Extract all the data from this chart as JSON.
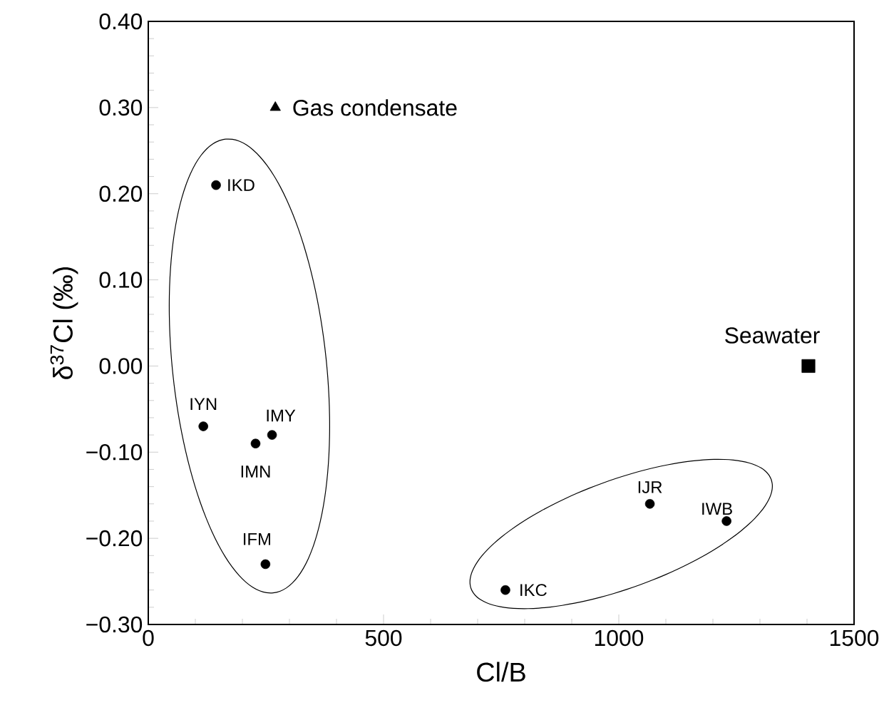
{
  "chart_data": {
    "type": "scatter",
    "xlabel": "Cl/B",
    "ylabel": "δ$^{37}$Cl (‰)",
    "xlim": [
      0,
      1500
    ],
    "xticks": [
      0,
      500,
      1000,
      1500
    ],
    "ylim": [
      -0.3,
      0.4
    ],
    "yticks": [
      {
        "value": -0.3,
        "label": "−0.30"
      },
      {
        "value": -0.2,
        "label": "−0.20"
      },
      {
        "value": -0.1,
        "label": "−0.10"
      },
      {
        "value": 0,
        "label": "0.00"
      },
      {
        "value": 0.1,
        "label": "0.10"
      },
      {
        "value": 0.2,
        "label": "0.20"
      },
      {
        "value": 0.3,
        "label": "0.30"
      },
      {
        "value": 0.4,
        "label": "0.40"
      }
    ],
    "series": [
      {
        "color": "#000000",
        "marker": "circle",
        "x": [
          144,
          117,
          228,
          263,
          249,
          759,
          1066,
          1229
        ],
        "values": [
          0.21,
          -0.07,
          -0.09,
          -0.08,
          -0.23,
          -0.26,
          -0.16,
          -0.18
        ]
      },
      {
        "name": "Gas condensate",
        "color": "#000000",
        "marker": "triangle",
        "x": [
          270
        ],
        "values": [
          0.3
        ]
      },
      {
        "name": "Seawater",
        "color": "#000000",
        "marker": "square",
        "x": [
          1403
        ],
        "values": [
          0.0
        ]
      }
    ],
    "annotations": [
      {
        "text": "IKD",
        "x": 144,
        "y": 0.21
      },
      {
        "text": "IYN",
        "x": 117,
        "y": -0.07
      },
      {
        "text": "IMN",
        "x": 228,
        "y": -0.09
      },
      {
        "text": "IMY",
        "x": 263,
        "y": -0.08
      },
      {
        "text": "IFM",
        "x": 249,
        "y": -0.23
      },
      {
        "text": "IKC",
        "x": 759,
        "y": -0.26
      },
      {
        "text": "IJR",
        "x": 1066,
        "y": -0.16
      },
      {
        "text": "IWB",
        "x": 1229,
        "y": -0.18
      }
    ]
  }
}
